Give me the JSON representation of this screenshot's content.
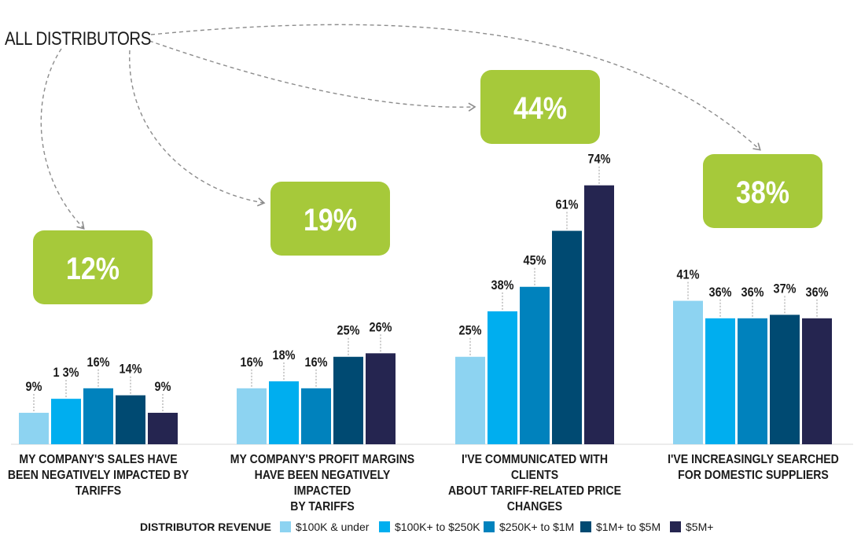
{
  "header": {
    "all_distributors": "ALL DISTRIBUTORS"
  },
  "colors": {
    "green_box": "#a6c93a",
    "series": [
      "#8dd3f1",
      "#00aeef",
      "#0082bd",
      "#004a72",
      "#252550"
    ],
    "arrow": "#8c8c8c"
  },
  "legend": {
    "title": "DISTRIBUTOR REVENUE",
    "items": [
      "$100K & under",
      "$100K+ to $250K",
      "$250K+ to $1M",
      "$1M+ to $5M",
      "$5M+"
    ]
  },
  "chart_data": {
    "type": "bar",
    "categories": [
      "MY COMPANY'S SALES HAVE BEEN NEGATIVELY IMPACTED BY TARIFFS",
      "MY COMPANY'S PROFIT MARGINS HAVE BEEN NEGATIVELY IMPACTED BY TARIFFS",
      "I'VE COMMUNICATED WITH CLIENTS ABOUT TARIFF-RELATED PRICE CHANGES",
      "I'VE INCREASINGLY SEARCHED FOR DOMESTIC SUPPLIERS"
    ],
    "category_lines": [
      [
        "MY COMPANY'S SALES HAVE",
        "BEEN NEGATIVELY IMPACTED BY",
        "TARIFFS"
      ],
      [
        "MY COMPANY'S PROFIT MARGINS",
        "HAVE BEEN NEGATIVELY IMPACTED",
        "BY TARIFFS"
      ],
      [
        "I'VE COMMUNICATED WITH CLIENTS",
        "ABOUT TARIFF-RELATED PRICE",
        "CHANGES"
      ],
      [
        "I'VE INCREASINGLY SEARCHED",
        "FOR DOMESTIC SUPPLIERS"
      ]
    ],
    "all_distributors": [
      12,
      19,
      44,
      38
    ],
    "all_distributors_labels": [
      "12%",
      "19%",
      "44%",
      "38%"
    ],
    "series": [
      {
        "name": "$100K & under",
        "values": [
          9,
          16,
          25,
          41
        ],
        "labels": [
          "9%",
          "16%",
          "25%",
          "41%"
        ]
      },
      {
        "name": "$100K+ to $250K",
        "values": [
          13,
          18,
          38,
          36
        ],
        "labels": [
          "1 3%",
          "18%",
          "38%",
          "36%"
        ]
      },
      {
        "name": "$250K+ to $1M",
        "values": [
          16,
          16,
          45,
          36
        ],
        "labels": [
          "16%",
          "16%",
          "45%",
          "36%"
        ]
      },
      {
        "name": "$1M+ to $5M",
        "values": [
          14,
          25,
          61,
          37
        ],
        "labels": [
          "14%",
          "25%",
          "61%",
          "37%"
        ]
      },
      {
        "name": "$5M+",
        "values": [
          9,
          26,
          74,
          36
        ],
        "labels": [
          "9%",
          "26%",
          "74%",
          "36%"
        ]
      }
    ],
    "ylim": [
      0,
      80
    ],
    "grid": false,
    "legend_position": "bottom"
  }
}
